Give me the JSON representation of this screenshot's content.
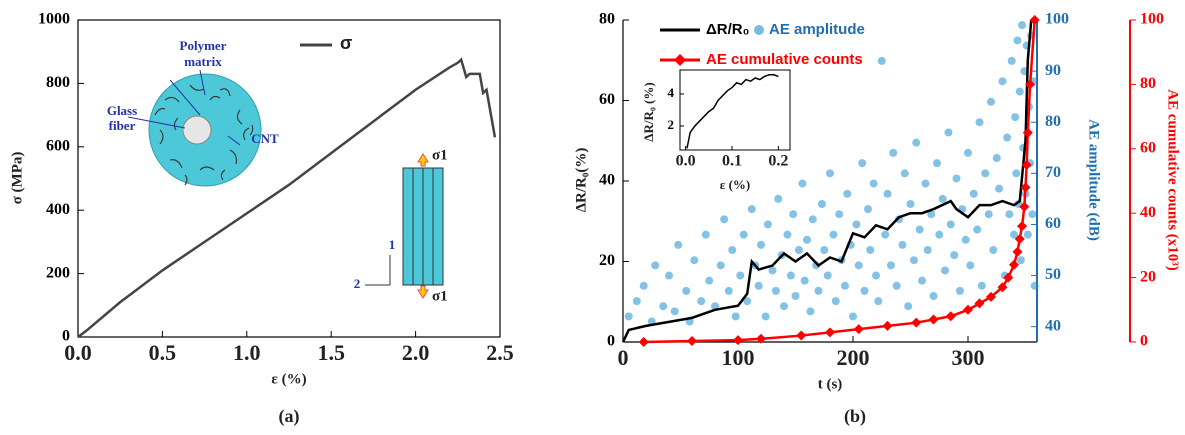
{
  "chart_data": [
    {
      "type": "line",
      "panel_label": "(a)",
      "xlabel": "ε (%)",
      "ylabel": "σ (MPa)",
      "x": [
        0,
        0.05,
        0.25,
        0.5,
        0.75,
        1.0,
        1.25,
        1.5,
        1.75,
        2.0,
        2.2,
        2.25,
        2.27,
        2.3,
        2.32,
        2.38,
        2.4,
        2.42,
        2.47
      ],
      "series": [
        {
          "name": "σ",
          "color": "#444444",
          "values": [
            0,
            20,
            110,
            210,
            300,
            390,
            480,
            580,
            680,
            780,
            850,
            865,
            875,
            820,
            830,
            830,
            770,
            780,
            630
          ]
        }
      ],
      "xlim": [
        0,
        2.5
      ],
      "ylim": [
        0,
        1000
      ],
      "xticks": [
        {
          "value": 0,
          "label": "0.0"
        },
        0.5,
        {
          "value": 1,
          "label": "1.0"
        },
        1.5,
        {
          "value": 2,
          "label": "2.0"
        },
        2.5
      ],
      "yticks": [
        0,
        200,
        400,
        600,
        800,
        1000
      ],
      "annotations": [
        "Polymer",
        "matrix",
        "Glass",
        "fiber",
        "CNT",
        "σ1",
        "σ1",
        "1",
        "2"
      ]
    },
    {
      "type": "combo",
      "panel_label": "(b)",
      "xlabel": "t (s)",
      "ylabel": "ΔR/R₀(%)",
      "y2label": "AE amplitude (dB)",
      "y3label": "AE cumulative counts (x10³)",
      "xlim": [
        0,
        360
      ],
      "xticks": [
        0,
        100,
        200,
        300
      ],
      "ylim": [
        0,
        80
      ],
      "yticks": [
        0,
        20,
        40,
        60,
        80
      ],
      "y2lim": [
        37,
        100
      ],
      "y2ticks": [
        40,
        50,
        60,
        70,
        80,
        90,
        100
      ],
      "y3lim": [
        0,
        100
      ],
      "y3ticks": [
        0,
        20,
        40,
        60,
        80,
        100
      ],
      "series": [
        {
          "name": "ΔR/R₀",
          "type": "line",
          "color": "#000000",
          "x": [
            0,
            5,
            20,
            40,
            60,
            80,
            100,
            108,
            112,
            118,
            130,
            140,
            150,
            160,
            170,
            180,
            190,
            200,
            210,
            220,
            230,
            240,
            250,
            260,
            270,
            285,
            290,
            300,
            310,
            320,
            330,
            340,
            345,
            350,
            352,
            355
          ],
          "values": [
            0,
            3,
            4,
            5,
            6,
            8,
            9,
            12,
            20,
            18,
            19,
            22,
            20,
            22,
            19,
            21,
            20,
            27,
            26,
            29,
            28,
            31,
            32,
            32,
            33,
            35,
            33,
            31,
            34,
            34,
            35,
            34,
            35,
            50,
            70,
            80
          ]
        },
        {
          "name": "AE amplitude",
          "type": "scatter",
          "axis": "y2",
          "color": "#1f8fcf",
          "x": [
            5,
            12,
            18,
            25,
            28,
            35,
            40,
            45,
            48,
            55,
            58,
            62,
            68,
            72,
            75,
            80,
            85,
            88,
            92,
            95,
            98,
            102,
            105,
            108,
            112,
            115,
            118,
            120,
            124,
            126,
            130,
            133,
            135,
            138,
            140,
            143,
            146,
            148,
            150,
            153,
            156,
            158,
            160,
            163,
            165,
            168,
            170,
            173,
            175,
            178,
            180,
            183,
            185,
            188,
            190,
            193,
            195,
            198,
            200,
            203,
            205,
            208,
            210,
            213,
            215,
            218,
            220,
            222,
            225,
            228,
            230,
            233,
            235,
            238,
            240,
            243,
            245,
            248,
            250,
            253,
            255,
            258,
            260,
            263,
            265,
            268,
            270,
            273,
            275,
            278,
            280,
            283,
            285,
            288,
            290,
            293,
            295,
            298,
            300,
            302,
            305,
            308,
            310,
            312,
            315,
            318,
            320,
            322,
            325,
            327,
            330,
            332,
            334,
            336,
            338,
            340,
            341,
            342,
            343,
            344,
            345,
            346,
            347,
            348,
            349,
            350,
            351,
            352,
            353,
            354,
            355,
            356,
            357,
            358
          ],
          "values": [
            42,
            45,
            48,
            41,
            52,
            44,
            50,
            43,
            56,
            47,
            41,
            53,
            45,
            58,
            49,
            44,
            52,
            61,
            47,
            55,
            42,
            50,
            58,
            45,
            63,
            52,
            48,
            56,
            42,
            60,
            51,
            47,
            65,
            54,
            44,
            58,
            50,
            62,
            46,
            55,
            68,
            49,
            57,
            43,
            61,
            52,
            47,
            64,
            55,
            50,
            70,
            58,
            45,
            62,
            53,
            48,
            66,
            56,
            42,
            60,
            52,
            72,
            47,
            63,
            55,
            68,
            50,
            45,
            92,
            58,
            66,
            52,
            74,
            48,
            61,
            56,
            70,
            44,
            64,
            53,
            76,
            59,
            49,
            68,
            55,
            62,
            46,
            72,
            58,
            65,
            51,
            78,
            60,
            54,
            69,
            47,
            63,
            57,
            74,
            52,
            66,
            59,
            80,
            48,
            70,
            62,
            84,
            55,
            73,
            67,
            88,
            50,
            77,
            62,
            92,
            58,
            81,
            70,
            96,
            64,
            86,
            53,
            99,
            75,
            90,
            66,
            95,
            58,
            83,
            72,
            97,
            62,
            88,
            48
          ]
        },
        {
          "name": "AE cumulative counts",
          "type": "line",
          "marker": "diamond",
          "axis": "y3",
          "color": "#ff0000",
          "x": [
            18,
            60,
            100,
            120,
            155,
            180,
            205,
            230,
            255,
            270,
            285,
            300,
            310,
            320,
            330,
            335,
            340,
            343,
            345,
            347,
            349,
            350,
            351,
            352,
            354,
            358
          ],
          "values": [
            0,
            0.3,
            0.6,
            1,
            2,
            3,
            4,
            5,
            6,
            7,
            8,
            10,
            12,
            14,
            17,
            20,
            24,
            28,
            32,
            36,
            42,
            48,
            55,
            65,
            80,
            100
          ]
        }
      ],
      "inset": {
        "type": "line",
        "xlabel": "ε (%)",
        "ylabel": "ΔR/R₀ (%)",
        "x": [
          0.003,
          0.01,
          0.02,
          0.03,
          0.04,
          0.05,
          0.06,
          0.07,
          0.08,
          0.09,
          0.1,
          0.11,
          0.12,
          0.13,
          0.14,
          0.15,
          0.16,
          0.17,
          0.18,
          0.19,
          0.2
        ],
        "values": [
          0.6,
          1.6,
          2.0,
          2.3,
          2.6,
          2.9,
          3.1,
          3.6,
          3.9,
          4.2,
          4.4,
          4.7,
          4.6,
          4.9,
          4.8,
          5.0,
          4.9,
          5.1,
          5.2,
          5.2,
          5.1
        ],
        "xlim": [
          -0.012,
          0.225
        ],
        "ylim": [
          0.5,
          5.5
        ],
        "xticks": [
          {
            "value": 0,
            "label": "0.0"
          },
          0.1,
          0.2
        ],
        "yticks": [
          2,
          4
        ]
      }
    }
  ]
}
